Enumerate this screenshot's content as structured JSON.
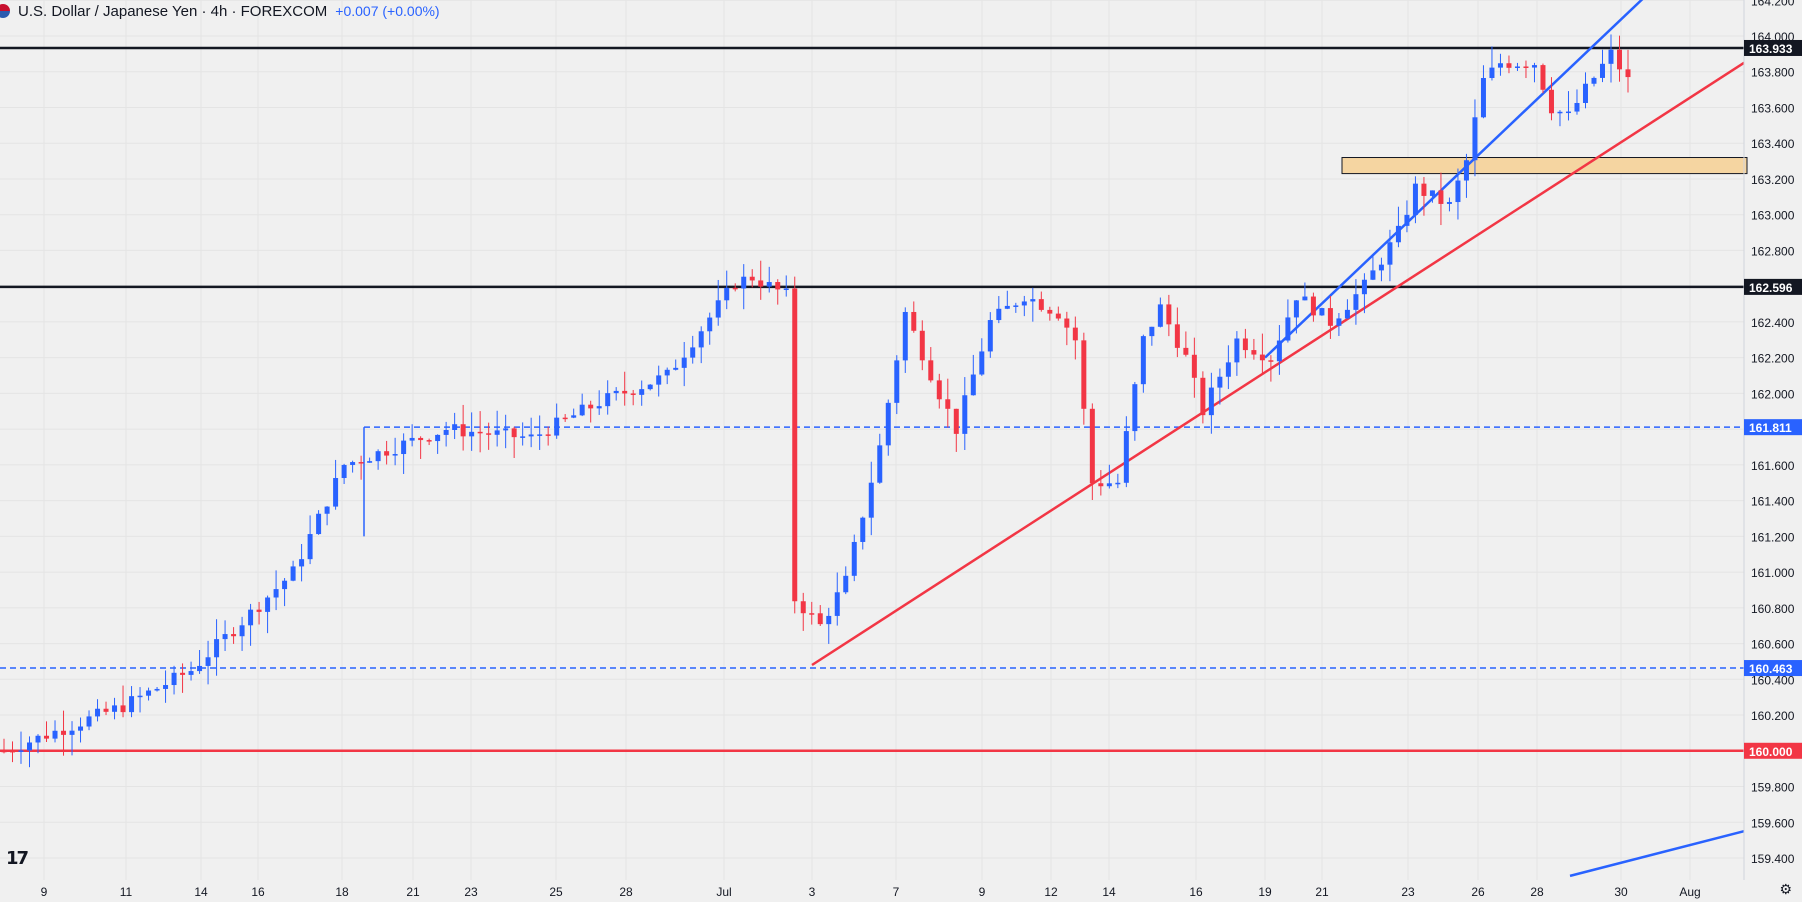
{
  "header": {
    "title": "U.S. Dollar / Japanese Yen · 4h · FOREXCOM",
    "change": "+0.007 (+0.00%)"
  },
  "icons": {
    "flag": "us-jp-flag-icon",
    "logo": "tradingview-logo-icon",
    "settings": "gear-icon"
  },
  "logo_text": "17",
  "colors": {
    "up": "#2962ff",
    "down": "#f23645",
    "background": "#f0f0f0",
    "grid": "#e4e4e4",
    "support_zone": "#f5d5a1"
  },
  "chart_data": {
    "type": "candlestick",
    "title": "U.S. Dollar / Japanese Yen · 4h · FOREXCOM",
    "ylim": [
      159.3,
      164.2
    ],
    "y_ticks": [
      "164.200",
      "164.000",
      "163.800",
      "163.600",
      "163.400",
      "163.200",
      "163.000",
      "162.800",
      "162.600",
      "162.400",
      "162.200",
      "162.000",
      "161.800",
      "161.600",
      "161.400",
      "161.200",
      "161.000",
      "160.800",
      "160.600",
      "160.400",
      "160.200",
      "160.000",
      "159.800",
      "159.600",
      "159.400"
    ],
    "x_ticks": [
      "9",
      "11",
      "14",
      "16",
      "18",
      "21",
      "23",
      "25",
      "28",
      "Jul",
      "3",
      "7",
      "9",
      "12",
      "14",
      "16",
      "19",
      "21",
      "23",
      "26",
      "28",
      "30",
      "Aug"
    ],
    "price_levels": [
      {
        "label": "163.933",
        "value": 163.933,
        "style": "solid",
        "color": "#131722"
      },
      {
        "label": "162.596",
        "value": 162.596,
        "style": "solid",
        "color": "#131722"
      },
      {
        "label": "161.811",
        "value": 161.811,
        "style": "dashed",
        "color": "#2962ff"
      },
      {
        "label": "160.463",
        "value": 160.463,
        "style": "dashed",
        "color": "#2962ff"
      },
      {
        "label": "160.000",
        "value": 160.0,
        "style": "solid",
        "color": "#f23645"
      }
    ],
    "zone": {
      "from_date": "Jul 21",
      "to_date": "Jul 30",
      "low": 163.23,
      "high": 163.32
    },
    "trendlines": [
      {
        "color": "#f23645",
        "points": [
          [
            "Jul 3",
            160.48
          ],
          [
            "Aug 1",
            163.85
          ]
        ]
      },
      {
        "color": "#2962ff",
        "points": [
          [
            "Jul 19",
            162.2
          ],
          [
            "Jul 31",
            164.3
          ]
        ]
      },
      {
        "color": "#2962ff",
        "points": [
          [
            "Jul 29",
            159.3
          ],
          [
            "Aug 1",
            159.55
          ]
        ]
      }
    ],
    "anchors": [
      [
        0,
        160.0
      ],
      [
        14,
        160.25
      ],
      [
        22,
        160.45
      ],
      [
        34,
        161.0
      ],
      [
        40,
        161.6
      ],
      [
        52,
        161.8
      ],
      [
        62,
        161.75
      ],
      [
        70,
        161.95
      ],
      [
        78,
        162.1
      ],
      [
        86,
        162.62
      ],
      [
        88,
        162.65
      ],
      [
        92,
        162.55
      ],
      [
        93,
        160.85
      ],
      [
        96,
        160.7
      ],
      [
        99,
        160.95
      ],
      [
        103,
        161.7
      ],
      [
        106,
        162.45
      ],
      [
        110,
        162.0
      ],
      [
        112,
        161.8
      ],
      [
        116,
        162.4
      ],
      [
        120,
        162.55
      ],
      [
        124,
        162.45
      ],
      [
        126,
        162.3
      ],
      [
        128,
        161.5
      ],
      [
        131,
        161.5
      ],
      [
        134,
        162.3
      ],
      [
        136,
        162.48
      ],
      [
        139,
        162.2
      ],
      [
        141,
        161.9
      ],
      [
        145,
        162.3
      ],
      [
        149,
        162.2
      ],
      [
        152,
        162.55
      ],
      [
        156,
        162.4
      ],
      [
        160,
        162.6
      ],
      [
        164,
        162.9
      ],
      [
        166,
        163.15
      ],
      [
        170,
        163.05
      ],
      [
        172,
        163.3
      ],
      [
        174,
        163.75
      ],
      [
        176,
        163.85
      ],
      [
        180,
        163.85
      ],
      [
        182,
        163.6
      ],
      [
        184,
        163.55
      ],
      [
        186,
        163.7
      ],
      [
        189,
        163.9
      ],
      [
        191,
        163.75
      ]
    ]
  }
}
